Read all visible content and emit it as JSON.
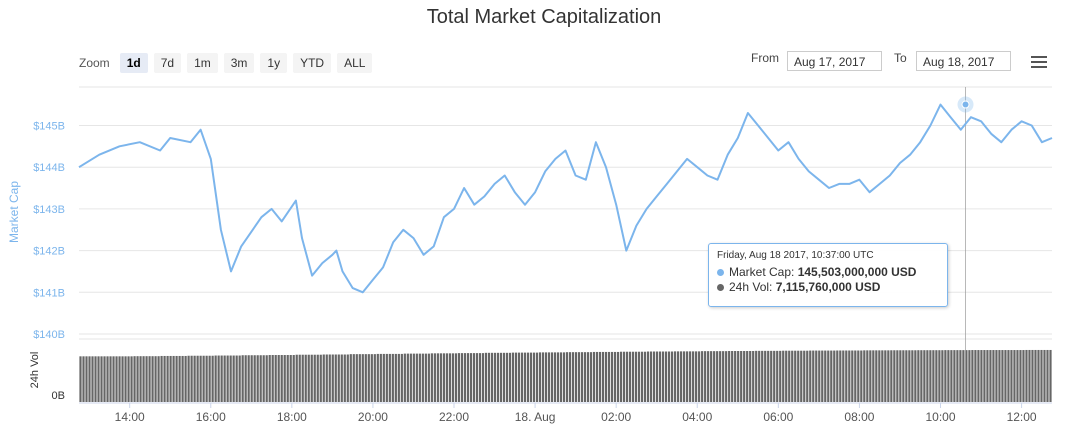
{
  "chart_data": {
    "type": "line",
    "title": "Total Market Capitalization",
    "zoom": {
      "label": "Zoom",
      "buttons": [
        "1d",
        "7d",
        "1m",
        "3m",
        "1y",
        "YTD",
        "ALL"
      ],
      "active": "1d"
    },
    "range": {
      "from_label": "From",
      "from": "Aug 17, 2017",
      "to_label": "To",
      "to": "Aug 18, 2017"
    },
    "y_axis": {
      "label": "Market Cap",
      "ticks": [
        "$140B",
        "$141B",
        "$142B",
        "$143B",
        "$144B",
        "$145B"
      ],
      "range": [
        140,
        146
      ],
      "grid": true
    },
    "volume_axis": {
      "label": "24h Vol",
      "ticks": [
        "0B"
      ]
    },
    "x_axis": {
      "ticks": [
        "14:00",
        "16:00",
        "18:00",
        "20:00",
        "22:00",
        "18. Aug",
        "02:00",
        "04:00",
        "06:00",
        "08:00",
        "10:00",
        "12:00"
      ],
      "range": [
        12.75,
        36.75
      ]
    },
    "series": [
      {
        "name": "Market Cap",
        "color": "#7cb5ec",
        "x": [
          12.75,
          13.25,
          13.75,
          14.25,
          14.75,
          15.0,
          15.5,
          15.75,
          16.0,
          16.25,
          16.5,
          16.75,
          17.25,
          17.5,
          17.75,
          18.1,
          18.25,
          18.5,
          18.75,
          19.0,
          19.1,
          19.25,
          19.5,
          19.75,
          20.0,
          20.25,
          20.5,
          20.75,
          21.0,
          21.25,
          21.5,
          21.75,
          22.0,
          22.25,
          22.5,
          22.75,
          23.0,
          23.25,
          23.5,
          23.75,
          24.0,
          24.25,
          24.5,
          24.75,
          25.0,
          25.25,
          25.5,
          25.75,
          26.0,
          26.25,
          26.5,
          26.75,
          27.0,
          27.25,
          27.5,
          27.75,
          28.0,
          28.25,
          28.5,
          28.75,
          29.0,
          29.25,
          29.5,
          29.75,
          30.0,
          30.25,
          30.5,
          30.75,
          31.0,
          31.25,
          31.5,
          31.75,
          32.0,
          32.25,
          32.5,
          32.75,
          33.0,
          33.25,
          33.5,
          33.75,
          34.0,
          34.25,
          34.5,
          34.75,
          35.0,
          35.25,
          35.5,
          35.75,
          36.0,
          36.25,
          36.5,
          36.75
        ],
        "y": [
          144.0,
          144.3,
          144.5,
          144.6,
          144.4,
          144.7,
          144.6,
          144.9,
          144.2,
          142.5,
          141.5,
          142.1,
          142.8,
          143.0,
          142.7,
          143.2,
          142.3,
          141.4,
          141.7,
          141.9,
          142.0,
          141.5,
          141.1,
          141.0,
          141.3,
          141.6,
          142.2,
          142.5,
          142.3,
          141.9,
          142.1,
          142.8,
          143.0,
          143.5,
          143.1,
          143.3,
          143.6,
          143.8,
          143.4,
          143.1,
          143.4,
          143.9,
          144.2,
          144.4,
          143.8,
          143.7,
          144.6,
          144.0,
          143.1,
          142.0,
          142.6,
          143.0,
          143.3,
          143.6,
          143.9,
          144.2,
          144.0,
          143.8,
          143.7,
          144.3,
          144.7,
          145.3,
          145.0,
          144.7,
          144.4,
          144.6,
          144.2,
          143.9,
          143.7,
          143.5,
          143.6,
          143.6,
          143.7,
          143.4,
          143.6,
          143.8,
          144.1,
          144.3,
          144.6,
          145.0,
          145.5,
          145.2,
          144.9,
          145.2,
          145.1,
          144.8,
          144.6,
          144.9,
          145.1,
          145.0,
          144.6,
          144.7
        ],
        "line_width": 2
      },
      {
        "name": "24h Vol",
        "color": "#666666",
        "type": "column",
        "y": [
          6.25,
          6.25,
          6.27,
          6.3,
          6.33,
          6.36,
          6.4,
          6.43,
          6.47,
          6.5,
          6.55,
          6.58,
          6.62,
          6.66,
          6.69,
          6.73,
          6.76,
          6.79,
          6.82,
          6.85,
          6.88,
          6.91,
          6.93,
          6.96,
          6.98,
          7.0,
          7.02,
          7.04,
          7.05,
          7.07,
          7.08,
          7.09,
          7.1,
          7.11,
          7.11,
          7.12
        ]
      }
    ],
    "tooltip": {
      "date": "Friday, Aug 18 2017, 10:37:00 UTC",
      "rows": [
        {
          "label": "Market Cap:",
          "value": "145,503,000,000 USD",
          "color": "#7cb5ec"
        },
        {
          "label": "24h Vol:",
          "value": "7,115,760,000 USD",
          "color": "#666666"
        }
      ],
      "x": 34.6167,
      "y": 145.503
    }
  }
}
